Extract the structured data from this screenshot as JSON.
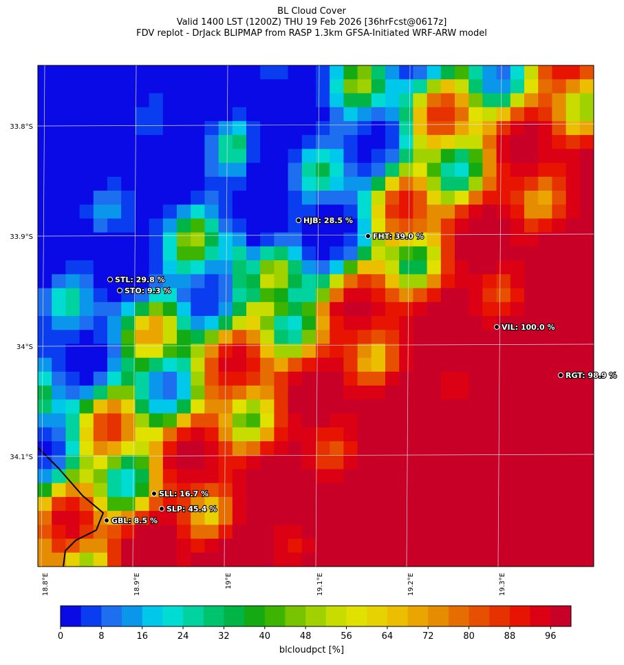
{
  "header": {
    "title": "BL Cloud Cover",
    "line2": "Valid 1400 LST (1200Z) THU 19 Feb 2026 [36hrFcst@0617z]",
    "line3": "FDV replot - DrJack BLIPMAP from RASP 1.3km GFSA-Initiated WRF-ARW model"
  },
  "map": {
    "lat_ticks": [
      {
        "value": 33.8,
        "label": "33.8°S"
      },
      {
        "value": 33.9,
        "label": "33.9°S"
      },
      {
        "value": 34.0,
        "label": "34°S"
      },
      {
        "value": 34.1,
        "label": "34.1°S"
      }
    ],
    "lon_ticks": [
      {
        "value": 18.8,
        "label": "18.8°E"
      },
      {
        "value": 18.9,
        "label": "18.9°E"
      },
      {
        "value": 19.0,
        "label": "19°E"
      },
      {
        "value": 19.1,
        "label": "19.1°E"
      },
      {
        "value": 19.2,
        "label": "19.2°E"
      },
      {
        "value": 19.3,
        "label": "19.3°E"
      }
    ],
    "stations": [
      {
        "label": "HJB: 28.5 %"
      },
      {
        "label": "FHT: 39.0 %"
      },
      {
        "label": "STL: 29.8 %"
      },
      {
        "label": "STO: 9.3 %"
      },
      {
        "label": "VIL: 100.0 %"
      },
      {
        "label": "RGT: 98.9 %"
      },
      {
        "label": "SLL: 16.7 %"
      },
      {
        "label": "SLP: 45.4 %"
      },
      {
        "label": "GBL: 8.5 %"
      }
    ]
  },
  "colorbar": {
    "label": "blcloudpct [%]",
    "lim": [
      0,
      100
    ],
    "ticks": [
      0,
      8,
      16,
      24,
      32,
      40,
      48,
      56,
      64,
      72,
      80,
      88,
      96
    ],
    "colors": [
      "#0a0ae6",
      "#0a3cf0",
      "#1e6ef0",
      "#0a96eb",
      "#00c8eb",
      "#00dcd2",
      "#00d2a0",
      "#00c36e",
      "#00b446",
      "#14aa14",
      "#3cb400",
      "#78c300",
      "#a0d200",
      "#c8dc00",
      "#e1e100",
      "#e6d200",
      "#ebbe00",
      "#eba500",
      "#e68c00",
      "#e66e00",
      "#e65000",
      "#e63200",
      "#e61400",
      "#dc0014",
      "#c80028"
    ]
  }
}
